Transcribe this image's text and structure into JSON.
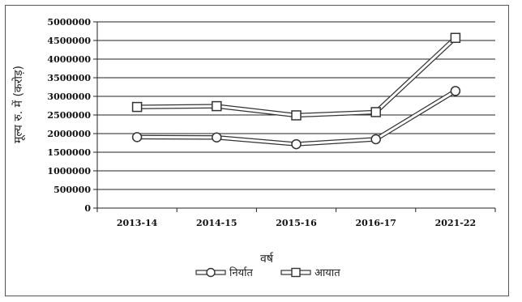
{
  "chart_data": {
    "type": "line",
    "categories": [
      "2013-14",
      "2014-15",
      "2015-16",
      "2016-17",
      "2021-22"
    ],
    "series": [
      {
        "name": "निर्यात",
        "marker": "circle",
        "values": [
          1905000,
          1897000,
          1716000,
          1849000,
          3145000
        ]
      },
      {
        "name": "आयात",
        "marker": "square",
        "values": [
          2715000,
          2737000,
          2490000,
          2577000,
          4570000
        ]
      }
    ],
    "xlabel": "वर्ष",
    "ylabel": "मूल्य रु. में (करोड़)",
    "ylim": [
      0,
      5000000
    ],
    "yticks": [
      "0",
      "500000",
      "1000000",
      "1500000",
      "2000000",
      "2500000",
      "3000000",
      "3500000",
      "4000000",
      "4500000",
      "5000000"
    ],
    "grid": true,
    "legend_position": "bottom",
    "colors": {
      "line": "#333333",
      "grid": "#222222",
      "marker_fill": "#ffffff"
    }
  }
}
